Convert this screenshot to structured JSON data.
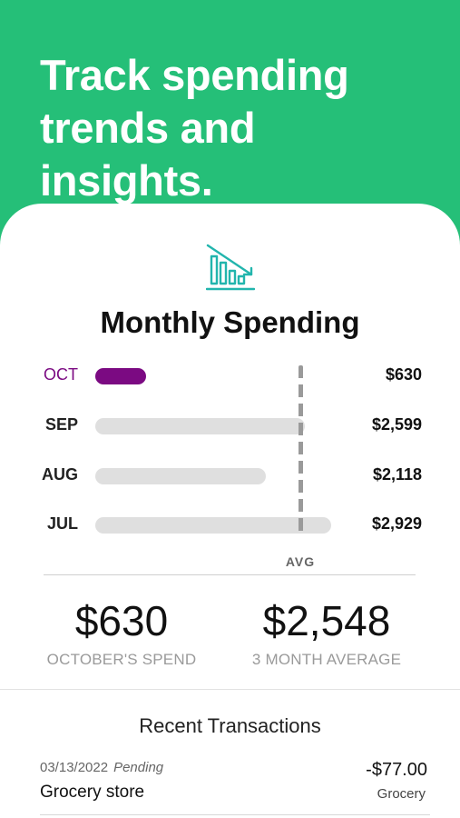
{
  "header": {
    "headline_line1": "Track spending",
    "headline_line2": "trends and insights."
  },
  "card": {
    "icon": "chart-decline-icon",
    "title": "Monthly Spending",
    "accent_color": "#7b0a82",
    "track_color": "#dfdfdf",
    "brand_color": "#25bf78"
  },
  "months": [
    {
      "label": "OCT",
      "amount": "$630",
      "value": 630,
      "current": true
    },
    {
      "label": "SEP",
      "amount": "$2,599",
      "value": 2599,
      "current": false
    },
    {
      "label": "AUG",
      "amount": "$2,118",
      "value": 2118,
      "current": false
    },
    {
      "label": "JUL",
      "amount": "$2,929",
      "value": 2929,
      "current": false
    }
  ],
  "average_marker": {
    "label": "AVG",
    "value": 2548
  },
  "summary": {
    "current_value": "$630",
    "current_caption": "OCTOBER'S SPEND",
    "average_value": "$2,548",
    "average_caption": "3 MONTH AVERAGE"
  },
  "recent": {
    "title": "Recent Transactions",
    "transactions": [
      {
        "date": "03/13/2022",
        "status": "Pending",
        "merchant": "Grocery store",
        "amount": "-$77.00",
        "category": "Grocery"
      }
    ]
  }
}
